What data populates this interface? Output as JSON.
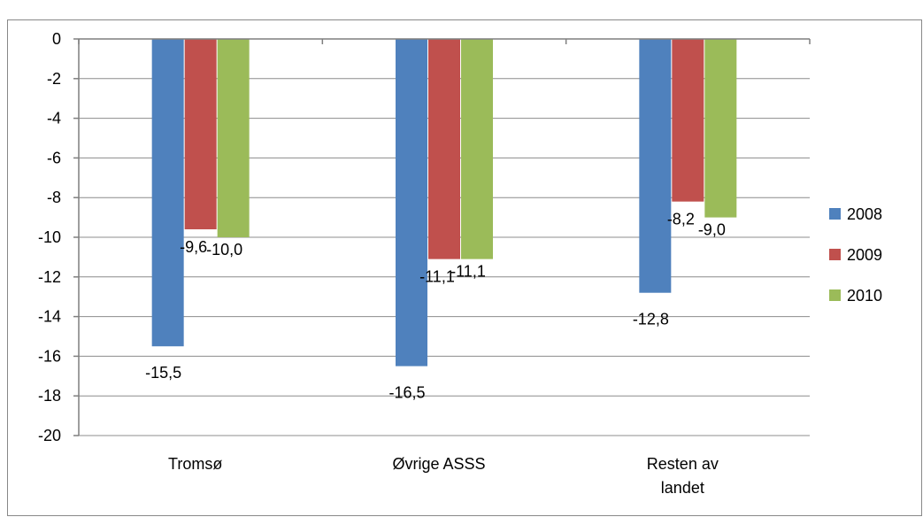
{
  "caption": "",
  "chart_data": {
    "type": "bar",
    "categories": [
      "Tromsø",
      "Øvrige ASSS",
      "Resten av landet"
    ],
    "category_lines": [
      [
        "Tromsø"
      ],
      [
        "Øvrige ASSS"
      ],
      [
        "Resten av",
        "landet"
      ]
    ],
    "series": [
      {
        "name": "2008",
        "values": [
          -15.5,
          -16.5,
          -12.8
        ],
        "labels": [
          "-15,5",
          "-16,5",
          "-12,8"
        ],
        "color": "#4f81bd"
      },
      {
        "name": "2009",
        "values": [
          -9.6,
          -11.1,
          -8.2
        ],
        "labels": [
          "-9,6",
          "-11,1",
          "-8,2"
        ],
        "color": "#c0504d"
      },
      {
        "name": "2010",
        "values": [
          -10.0,
          -11.1,
          -9.0
        ],
        "labels": [
          "-10,0",
          "-11,1",
          "-9,0"
        ],
        "color": "#9bbb59"
      }
    ],
    "yticks": [
      0,
      -2,
      -4,
      -6,
      -8,
      -10,
      -12,
      -14,
      -16,
      -18,
      -20
    ],
    "ytick_labels": [
      "0",
      "-2",
      "-4",
      "-6",
      "-8",
      "-10",
      "-12",
      "-14",
      "-16",
      "-18",
      "-20"
    ],
    "ylim": [
      -20,
      0
    ],
    "grid": true,
    "legend": "right",
    "title": "",
    "xlabel": "",
    "ylabel": ""
  }
}
